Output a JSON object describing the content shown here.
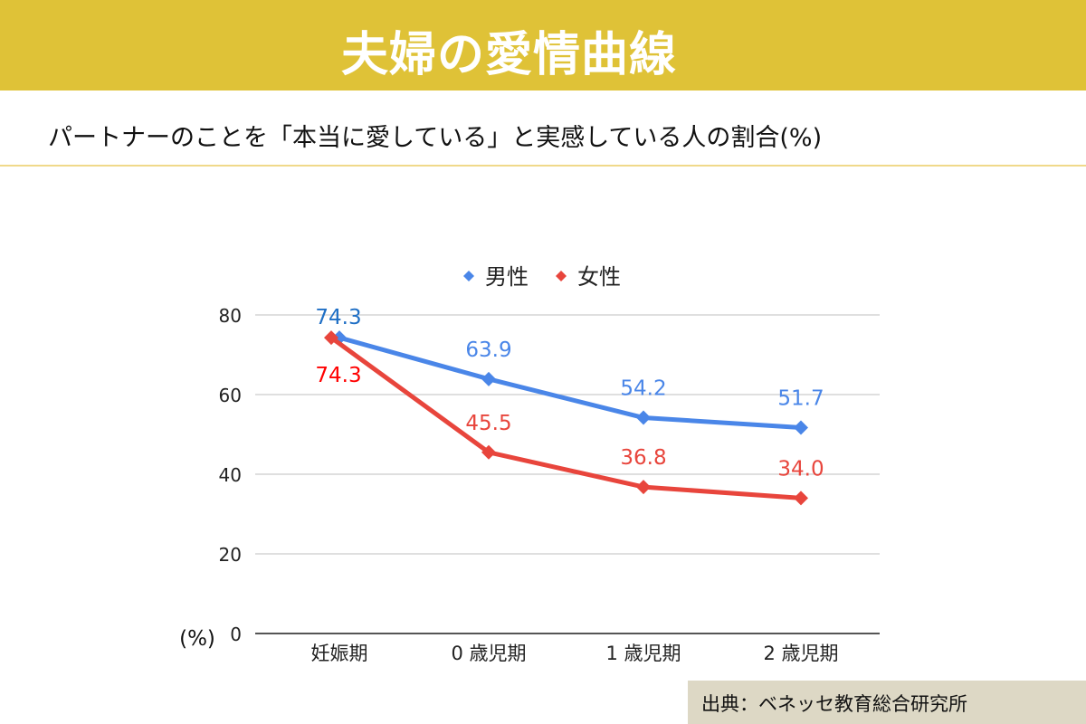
{
  "header": {
    "title": "夫婦の愛情曲線"
  },
  "subtitle": "パートナーのことを「本当に愛している」と実感している人の割合(%)",
  "source": "出典：ベネッセ教育総合研究所",
  "colors": {
    "banner": "#DFC237",
    "male": "#4A86E8",
    "female": "#E8453C",
    "male_first_label": "#1F6FC5",
    "female_first_label": "#FF0000"
  },
  "chart_data": {
    "type": "line",
    "title": "パートナーのことを「本当に愛している」と実感している人の割合(%)",
    "categories": [
      "妊娠期",
      "0 歳児期",
      "1 歳児期",
      "2 歳児期"
    ],
    "series": [
      {
        "name": "男性",
        "values": [
          74.3,
          63.9,
          54.2,
          51.7
        ],
        "labels": [
          "74.3",
          "63.9",
          "54.2",
          "51.7"
        ]
      },
      {
        "name": "女性",
        "values": [
          74.3,
          45.5,
          36.8,
          34.0
        ],
        "labels": [
          "74.3",
          "45.5",
          "36.8",
          "34.0"
        ]
      }
    ],
    "ylabel": "(%)",
    "ylim": [
      0,
      80
    ],
    "yticks": [
      "0",
      "20",
      "40",
      "60",
      "80"
    ],
    "grid": true,
    "legend": "top",
    "marker": "diamond"
  }
}
